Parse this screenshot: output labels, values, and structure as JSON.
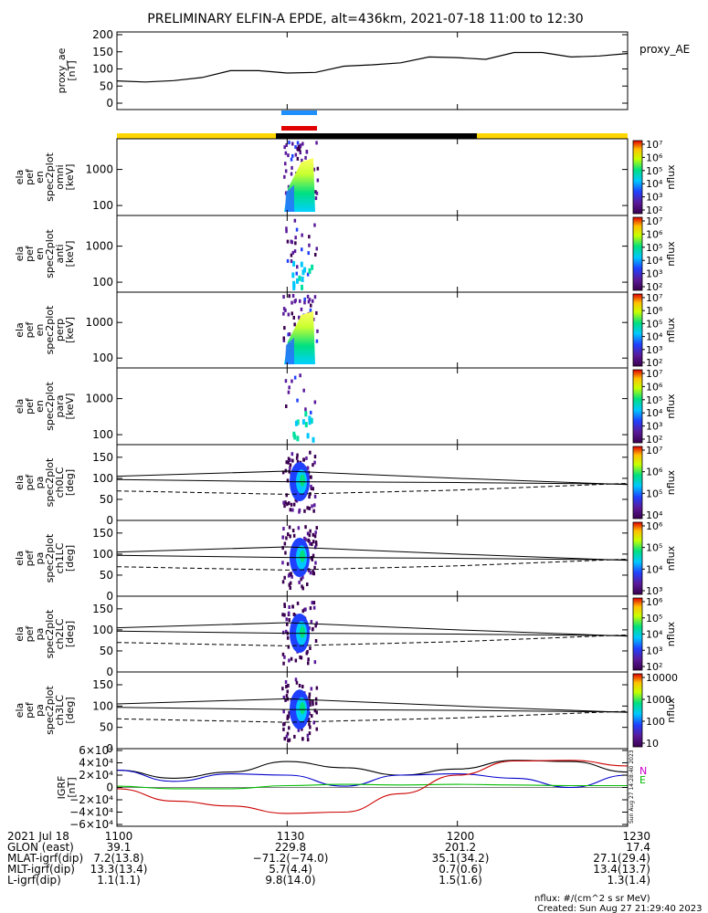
{
  "title": "PRELIMINARY ELFIN-A EPDE, alt=436km, 2021-07-18 11:00 to 12:30",
  "colors": {
    "sci_zone": "#ffd700",
    "eclipse": "#000000",
    "bar_blue": "#1e90ff",
    "bar_red": "#e00000",
    "bx": "#0000cc",
    "by": "#00bb00",
    "bz": "#cc0000",
    "spec_low": "#6600aa",
    "spec_mid": "#00b0ff",
    "spec_high": "#ffff00"
  },
  "chart_data": [
    {
      "type": "line",
      "panel": "proxy_ae",
      "ylabel": [
        "proxy_ae",
        "[nT]"
      ],
      "yticks": [
        "200",
        "150",
        "100",
        "50",
        "0"
      ],
      "ylim": [
        0,
        200
      ],
      "legend": "proxy_AE",
      "x": [
        0,
        5,
        10,
        15,
        20,
        25,
        30,
        35,
        40,
        45,
        50,
        55,
        60,
        65,
        70,
        75,
        80,
        85,
        90
      ],
      "values": [
        65,
        62,
        66,
        75,
        95,
        95,
        88,
        90,
        108,
        112,
        118,
        135,
        133,
        128,
        148,
        148,
        135,
        138,
        145
      ]
    },
    {
      "type": "heatmap",
      "panel": "omni",
      "ylabel": [
        "ela",
        "pef",
        "en",
        "spec2plot",
        "omni",
        "[keV]"
      ],
      "yticks": [
        "1000",
        "100"
      ],
      "scale": "log",
      "colorbar_ticks": [
        "10⁷",
        "10⁶",
        "10⁵",
        "10⁴",
        "10³",
        "10²"
      ],
      "colorbar_label": "nflux"
    },
    {
      "type": "heatmap",
      "panel": "anti",
      "ylabel": [
        "ela",
        "pef",
        "en",
        "spec2plot",
        "anti",
        "[keV]"
      ],
      "yticks": [
        "1000",
        "100"
      ],
      "scale": "log",
      "colorbar_ticks": [
        "10⁷",
        "10⁶",
        "10⁵",
        "10⁴",
        "10³",
        "10²"
      ],
      "colorbar_label": "nflux"
    },
    {
      "type": "heatmap",
      "panel": "perp",
      "ylabel": [
        "ela",
        "pef",
        "en",
        "spec2plot",
        "perp",
        "[keV]"
      ],
      "yticks": [
        "1000",
        "100"
      ],
      "scale": "log",
      "colorbar_ticks": [
        "10⁷",
        "10⁶",
        "10⁵",
        "10⁴",
        "10³",
        "10²"
      ],
      "colorbar_label": "nflux"
    },
    {
      "type": "heatmap",
      "panel": "para",
      "ylabel": [
        "ela",
        "pef",
        "en",
        "spec2plot",
        "para",
        "[keV]"
      ],
      "yticks": [
        "1000",
        "100"
      ],
      "scale": "log",
      "colorbar_ticks": [
        "10⁷",
        "10⁶",
        "10⁵",
        "10⁴",
        "10³",
        "10²"
      ],
      "colorbar_label": "nflux"
    },
    {
      "type": "heatmap",
      "panel": "ch0LC",
      "ylabel": [
        "ela",
        "pef",
        "pa",
        "spec2plot",
        "ch0LC",
        "[deg]"
      ],
      "yticks": [
        "150",
        "100",
        "50",
        "0"
      ],
      "ylim": [
        0,
        180
      ],
      "colorbar_ticks": [
        "10⁷",
        "10⁶",
        "10⁵",
        "10⁴"
      ],
      "colorbar_label": "nflux"
    },
    {
      "type": "heatmap",
      "panel": "ch1LC",
      "ylabel": [
        "ela",
        "pef",
        "pa",
        "spec2plot",
        "ch1LC",
        "[deg]"
      ],
      "yticks": [
        "150",
        "100",
        "50",
        "0"
      ],
      "ylim": [
        0,
        180
      ],
      "colorbar_ticks": [
        "10⁶",
        "10⁵",
        "10⁴",
        "10³"
      ],
      "colorbar_label": "nflux"
    },
    {
      "type": "heatmap",
      "panel": "ch2LC",
      "ylabel": [
        "ela",
        "pef",
        "pa",
        "spec2plot",
        "ch2LC",
        "[deg]"
      ],
      "yticks": [
        "150",
        "100",
        "50",
        "0"
      ],
      "ylim": [
        0,
        180
      ],
      "colorbar_ticks": [
        "10⁶",
        "10⁵",
        "10⁴",
        "10³",
        "10²"
      ],
      "colorbar_label": "nflux"
    },
    {
      "type": "heatmap",
      "panel": "ch3LC",
      "ylabel": [
        "ela",
        "pef",
        "pa",
        "spec2plot",
        "ch3LC",
        "[deg]"
      ],
      "yticks": [
        "150",
        "100",
        "50",
        "0"
      ],
      "ylim": [
        0,
        180
      ],
      "colorbar_ticks": [
        "10000",
        "1000",
        "100",
        "10"
      ],
      "colorbar_label": "nflux"
    },
    {
      "type": "line",
      "panel": "igrf",
      "ylabel": [
        "IGRF",
        "[nT]"
      ],
      "yticks": [
        "6×10⁴",
        "4×10⁴",
        "2×10⁴",
        "0",
        "−2×10⁴",
        "−4×10⁴",
        "−6×10⁴"
      ],
      "ylim": [
        -60000,
        60000
      ],
      "legend": [
        "N",
        "E"
      ],
      "side_note": "Sun Aug 27 14:28:40 2023",
      "x": [
        0,
        10,
        20,
        30,
        40,
        50,
        60,
        70,
        80,
        90
      ],
      "series": [
        {
          "color": "#000000",
          "values": [
            28000,
            15000,
            25000,
            42000,
            32000,
            20000,
            30000,
            44000,
            42000,
            25000
          ]
        },
        {
          "color": "#0000cc",
          "values": [
            28000,
            10000,
            22000,
            20000,
            2000,
            20000,
            22000,
            15000,
            0,
            20000
          ]
        },
        {
          "color": "#00bb00",
          "values": [
            2000,
            -2000,
            -2000,
            3000,
            5000,
            4000,
            5000,
            4000,
            3000,
            3000
          ]
        },
        {
          "color": "#cc0000",
          "values": [
            -2000,
            -22000,
            -30000,
            -42000,
            -40000,
            -10000,
            20000,
            43000,
            44000,
            35000
          ]
        }
      ]
    }
  ],
  "xaxis": {
    "rows": [
      {
        "label": "2021 Jul 18",
        "values": [
          "1100",
          "1130",
          "1200",
          "1230"
        ]
      },
      {
        "label": "GLON (east)",
        "values": [
          "39.1",
          "229.8",
          "201.2",
          "17.4"
        ]
      },
      {
        "label": "MLAT-igrf(dip)",
        "values": [
          "7.2(13.8)",
          "−71.2(−74.0)",
          "35.1(34.2)",
          "27.1(29.4)"
        ]
      },
      {
        "label": "MLT-igrf(dip)",
        "values": [
          "13.3(13.4)",
          "5.7(4.4)",
          "0.7(0.6)",
          "13.4(13.7)"
        ]
      },
      {
        "label": "L-igrf(dip)",
        "values": [
          "1.1(1.1)",
          "9.8(14.0)",
          "1.5(1.6)",
          "1.3(1.4)"
        ]
      }
    ]
  },
  "footer": {
    "units": "nflux: #/(cm^2 s sr MeV)",
    "created": "Created: Sun Aug 27 21:29:40 2023"
  }
}
